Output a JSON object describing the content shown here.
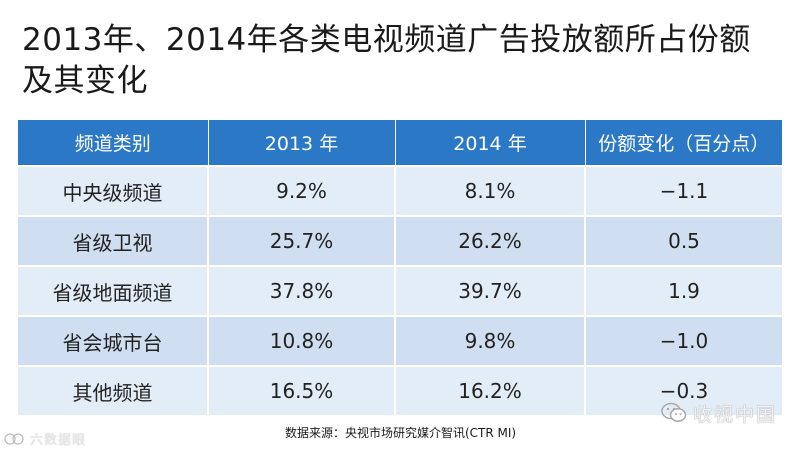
{
  "title": "2013年、2014年各类电视频道广告投放额所占份额及其变化",
  "table": {
    "headers": [
      "频道类别",
      "2013 年",
      "2014 年",
      "份额变化（百分点）"
    ],
    "rows": [
      [
        "中央级频道",
        "9.2%",
        "8.1%",
        "−1.1"
      ],
      [
        "省级卫视",
        "25.7%",
        "26.2%",
        "0.5"
      ],
      [
        "省级地面频道",
        "37.8%",
        "39.7%",
        "1.9"
      ],
      [
        "省会城市台",
        "10.8%",
        "9.8%",
        "−1.0"
      ],
      [
        "其他频道",
        "16.5%",
        "16.2%",
        "−0.3"
      ]
    ]
  },
  "source": "数据来源：央视市场研究媒介智讯(CTR MI)",
  "watermarks": {
    "left": "六数据眼",
    "right": "收视中国"
  },
  "colors": {
    "header_bg": "#2b78c6",
    "row_light": "#e3edf8",
    "row_dark": "#cfdff1"
  }
}
